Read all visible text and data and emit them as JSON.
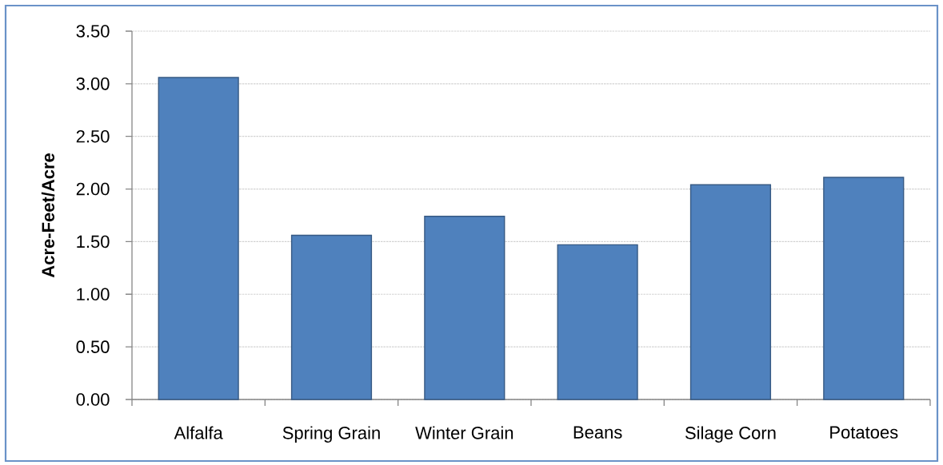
{
  "chart_data": {
    "type": "bar",
    "ylabel": "Acre-Feet/Acre",
    "categories": [
      "Alfalfa",
      "Spring Grain",
      "Winter Grain",
      "Beans",
      "Silage Corn",
      "Potatoes"
    ],
    "values": [
      3.06,
      1.56,
      1.74,
      1.47,
      2.04,
      2.11
    ],
    "color": "#4f81bd",
    "ylim": [
      0,
      3.5
    ],
    "yticks": [
      {
        "value": 0,
        "label": "0.00"
      },
      {
        "value": 0.5,
        "label": "0.50"
      },
      {
        "value": 1,
        "label": "1.00"
      },
      {
        "value": 1.5,
        "label": "1.50"
      },
      {
        "value": 2,
        "label": "2.00"
      },
      {
        "value": 2.5,
        "label": "2.50"
      },
      {
        "value": 3,
        "label": "3.00"
      },
      {
        "value": 3.5,
        "label": "3.50"
      }
    ],
    "grid": "y"
  }
}
